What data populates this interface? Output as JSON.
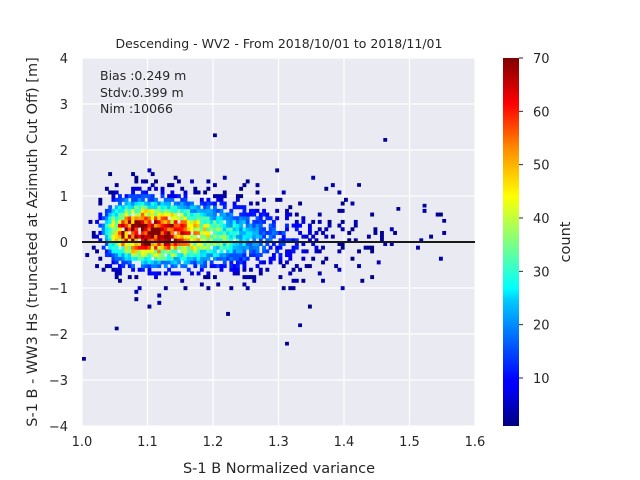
{
  "chart_data": {
    "type": "heatmap",
    "title": "Descending - WV2 - From 2018/10/01 to 2018/11/01",
    "xlabel": "S-1 B Normalized variance",
    "ylabel": "S-1 B - WW3 Hs (truncated at Azimuth Cut Off) [m]",
    "xlim": [
      1.0,
      1.6
    ],
    "ylim": [
      -4,
      4
    ],
    "xticks": [
      "1.0",
      "1.1",
      "1.2",
      "1.3",
      "1.4",
      "1.5",
      "1.6"
    ],
    "yticks": [
      "4",
      "3",
      "2",
      "1",
      "0",
      "−1",
      "−2",
      "−3",
      "−4"
    ],
    "stats": [
      "Bias :0.249 m",
      "Stdv:0.399 m",
      "Nim :10066"
    ],
    "reference_line_y": 0,
    "grid": true,
    "colorbar": {
      "label": "count",
      "min": 1,
      "max": 70,
      "ticks": [
        "70",
        "60",
        "50",
        "40",
        "30",
        "20",
        "10"
      ],
      "colormap": "jet"
    },
    "density_peak": {
      "x": 1.095,
      "y": 0.22,
      "max_count": 70
    },
    "outliers": [
      {
        "x": 1.2,
        "y": 2.28
      },
      {
        "x": 1.46,
        "y": 2.18
      },
      {
        "x": 1.52,
        "y": 0.75
      },
      {
        "x": 1.55,
        "y": 0.42
      },
      {
        "x": 1.31,
        "y": -2.25
      },
      {
        "x": 1.0,
        "y": -2.58
      },
      {
        "x": 1.05,
        "y": -1.92
      },
      {
        "x": 1.33,
        "y": -1.85
      },
      {
        "x": 1.48,
        "y": 0.68
      },
      {
        "x": 1.42,
        "y": 1.2
      }
    ]
  },
  "colors": {
    "plot_background": "#eaeaf2",
    "grid": "#ffffff",
    "reference_line": "#1a1a1a",
    "text": "#262626"
  }
}
